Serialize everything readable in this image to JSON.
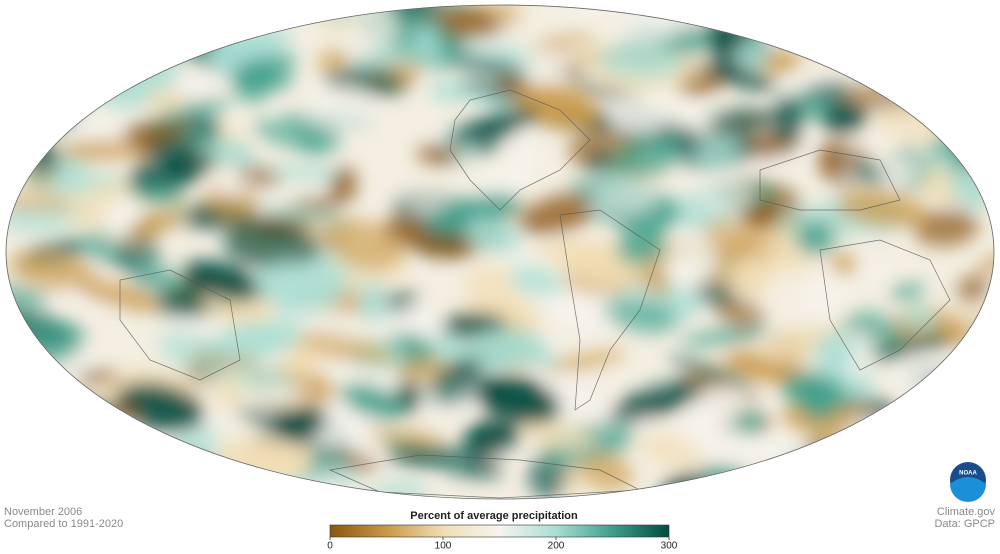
{
  "map": {
    "date": "November 2006",
    "baseline": "Compared to 1991-2020"
  },
  "legend": {
    "title": "Percent of average precipitation",
    "ticks": [
      0,
      100,
      200,
      300
    ],
    "colors": [
      "#8a560f",
      "#c99847",
      "#f1ddb4",
      "#f6f4ee",
      "#a9ddd3",
      "#3d9f8b",
      "#024a40"
    ]
  },
  "credits": {
    "source": "Climate.gov",
    "data": "Data: GPCP",
    "logo": "NOAA"
  }
}
